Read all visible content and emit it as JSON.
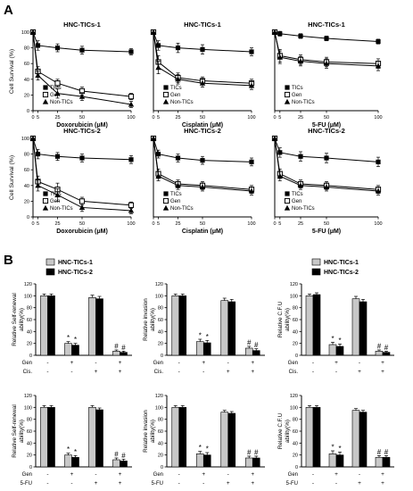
{
  "panel_labels": {
    "A": "A",
    "B": "B"
  },
  "chart_data": [
    {
      "id": "A1",
      "type": "line",
      "title": "HNC-TICs-1",
      "xlabel": "Doxorubicin (μM)",
      "ylabel": "Cell Survival (%)",
      "x": [
        0,
        5,
        25,
        50,
        100
      ],
      "xticks": [
        "0",
        "5",
        "25",
        "50",
        "100"
      ],
      "ylim": [
        0,
        100
      ],
      "yticks": [
        "0",
        "20",
        "40",
        "60",
        "80",
        "100"
      ],
      "series": [
        {
          "name": "TICs",
          "marker": "square-filled",
          "values": [
            100,
            83,
            80,
            77,
            75
          ],
          "err": [
            3,
            6,
            5,
            5,
            4
          ]
        },
        {
          "name": "Gen",
          "marker": "square-open",
          "values": [
            100,
            50,
            35,
            25,
            18
          ],
          "err": [
            3,
            6,
            5,
            5,
            4
          ]
        },
        {
          "name": "Non-TICs",
          "marker": "triangle",
          "values": [
            100,
            45,
            22,
            18,
            8
          ],
          "err": [
            3,
            6,
            6,
            5,
            4
          ]
        }
      ]
    },
    {
      "id": "A2",
      "type": "line",
      "title": "HNC-TICs-1",
      "xlabel": "Cisplatin (μM)",
      "ylabel": "",
      "x": [
        0,
        5,
        25,
        50,
        100
      ],
      "xticks": [
        "0",
        "5",
        "25",
        "50",
        "100"
      ],
      "ylim": [
        0,
        100
      ],
      "yticks": [],
      "series": [
        {
          "name": "TICs",
          "marker": "square-filled",
          "values": [
            100,
            83,
            80,
            78,
            75
          ],
          "err": [
            3,
            6,
            6,
            6,
            5
          ]
        },
        {
          "name": "Gen",
          "marker": "square-open",
          "values": [
            100,
            62,
            42,
            38,
            35
          ],
          "err": [
            3,
            8,
            6,
            5,
            5
          ]
        },
        {
          "name": "Non-TICs",
          "marker": "triangle",
          "values": [
            100,
            55,
            40,
            35,
            32
          ],
          "err": [
            3,
            8,
            6,
            5,
            5
          ]
        }
      ]
    },
    {
      "id": "A3",
      "type": "line",
      "title": "HNC-TICs-1",
      "xlabel": "5-FU (μM)",
      "ylabel": "",
      "x": [
        0,
        5,
        25,
        50,
        100
      ],
      "xticks": [
        "0",
        "5",
        "25",
        "50",
        "100"
      ],
      "ylim": [
        0,
        100
      ],
      "yticks": [],
      "series": [
        {
          "name": "TICs",
          "marker": "square-filled",
          "values": [
            100,
            98,
            95,
            92,
            88
          ],
          "err": [
            2,
            3,
            3,
            3,
            3
          ]
        },
        {
          "name": "Gen",
          "marker": "square-open",
          "values": [
            100,
            70,
            65,
            62,
            60
          ],
          "err": [
            3,
            8,
            6,
            6,
            6
          ]
        },
        {
          "name": "Non-TICs",
          "marker": "triangle",
          "values": [
            100,
            68,
            63,
            60,
            57
          ],
          "err": [
            3,
            8,
            6,
            6,
            6
          ]
        }
      ]
    },
    {
      "id": "A4",
      "type": "line",
      "title": "HNC-TICs-2",
      "xlabel": "Doxorubicin (μM)",
      "ylabel": "Cell Survival (%)",
      "x": [
        0,
        5,
        25,
        50,
        100
      ],
      "xticks": [
        "0",
        "5",
        "25",
        "50",
        "100"
      ],
      "ylim": [
        0,
        100
      ],
      "yticks": [
        "0",
        "20",
        "40",
        "60",
        "80",
        "100"
      ],
      "series": [
        {
          "name": "TICs",
          "marker": "square-filled",
          "values": [
            100,
            80,
            77,
            75,
            73
          ],
          "err": [
            3,
            6,
            5,
            5,
            5
          ]
        },
        {
          "name": "Gen",
          "marker": "square-open",
          "values": [
            100,
            45,
            35,
            20,
            15
          ],
          "err": [
            3,
            7,
            8,
            5,
            4
          ]
        },
        {
          "name": "Non-TICs",
          "marker": "triangle",
          "values": [
            100,
            40,
            28,
            12,
            8
          ],
          "err": [
            3,
            7,
            8,
            5,
            4
          ]
        }
      ]
    },
    {
      "id": "A5",
      "type": "line",
      "title": "HNC-TICs-2",
      "xlabel": "Cisplatin (μM)",
      "ylabel": "",
      "x": [
        0,
        5,
        25,
        50,
        100
      ],
      "xticks": [
        "0",
        "5",
        "25",
        "50",
        "100"
      ],
      "ylim": [
        0,
        100
      ],
      "yticks": [],
      "series": [
        {
          "name": "TICs",
          "marker": "square-filled",
          "values": [
            100,
            80,
            75,
            72,
            70
          ],
          "err": [
            3,
            5,
            5,
            5,
            5
          ]
        },
        {
          "name": "Gen",
          "marker": "square-open",
          "values": [
            100,
            55,
            42,
            40,
            35
          ],
          "err": [
            3,
            6,
            5,
            5,
            5
          ]
        },
        {
          "name": "Non-TICs",
          "marker": "triangle",
          "values": [
            100,
            52,
            40,
            38,
            33
          ],
          "err": [
            3,
            6,
            5,
            5,
            5
          ]
        }
      ]
    },
    {
      "id": "A6",
      "type": "line",
      "title": "HNC-TICs-2",
      "xlabel": "5-FU (μM)",
      "ylabel": "",
      "x": [
        0,
        5,
        25,
        50,
        100
      ],
      "xticks": [
        "0",
        "5",
        "25",
        "50",
        "100"
      ],
      "ylim": [
        0,
        100
      ],
      "yticks": [],
      "series": [
        {
          "name": "TICs",
          "marker": "square-filled",
          "values": [
            100,
            82,
            77,
            75,
            70
          ],
          "err": [
            3,
            6,
            6,
            6,
            6
          ]
        },
        {
          "name": "Gen",
          "marker": "square-open",
          "values": [
            100,
            55,
            42,
            40,
            35
          ],
          "err": [
            3,
            6,
            5,
            5,
            5
          ]
        },
        {
          "name": "Non-TICs",
          "marker": "triangle",
          "values": [
            100,
            52,
            40,
            38,
            33
          ],
          "err": [
            3,
            6,
            5,
            5,
            5
          ]
        }
      ]
    },
    {
      "id": "B1",
      "type": "bar",
      "ylabel": "Relative Self-renewal ability(%)",
      "ylim": [
        0,
        120
      ],
      "yticks": [
        "0",
        "20",
        "40",
        "60",
        "80",
        "100",
        "120"
      ],
      "legend": [
        "HNC-TICs-1",
        "HNC-TICs-2"
      ],
      "rows": [
        {
          "label": "Gen",
          "values": [
            "-",
            "+",
            "-",
            "+"
          ]
        },
        {
          "label": "Cis.",
          "values": [
            "-",
            "-",
            "+",
            "+"
          ]
        }
      ],
      "series": [
        {
          "name": "HNC-TICs-1",
          "color": "#c8c8c8",
          "values": [
            100,
            20,
            97,
            7
          ],
          "err": [
            3,
            3,
            4,
            2
          ]
        },
        {
          "name": "HNC-TICs-2",
          "color": "#000000",
          "values": [
            100,
            17,
            95,
            5
          ],
          "err": [
            3,
            3,
            4,
            2
          ]
        }
      ],
      "annotations": [
        "",
        "*",
        "",
        "#"
      ]
    },
    {
      "id": "B2",
      "type": "bar",
      "ylabel": "Relative invasion ability(%)",
      "ylim": [
        0,
        120
      ],
      "yticks": [
        "0",
        "20",
        "40",
        "60",
        "80",
        "100",
        "120"
      ],
      "legend": [],
      "rows": [
        {
          "label": "Gen",
          "values": [
            "-",
            "+",
            "-",
            "+"
          ]
        },
        {
          "label": "Cis.",
          "values": [
            "-",
            "-",
            "+",
            "+"
          ]
        }
      ],
      "series": [
        {
          "name": "HNC-TICs-1",
          "color": "#c8c8c8",
          "values": [
            100,
            23,
            92,
            12
          ],
          "err": [
            3,
            4,
            4,
            3
          ]
        },
        {
          "name": "HNC-TICs-2",
          "color": "#000000",
          "values": [
            100,
            21,
            90,
            8
          ],
          "err": [
            3,
            4,
            4,
            3
          ]
        }
      ],
      "annotations": [
        "",
        "*",
        "",
        "#"
      ]
    },
    {
      "id": "B3",
      "type": "bar",
      "ylabel": "Relative C.F.U ability(%)",
      "ylim": [
        0,
        120
      ],
      "yticks": [
        "0",
        "20",
        "40",
        "60",
        "80",
        "100",
        "120"
      ],
      "legend": [
        "HNC-TICs-1",
        "HNC-TICs-2"
      ],
      "rows": [
        {
          "label": "Gen",
          "values": [
            "-",
            "+",
            "-",
            "+"
          ]
        },
        {
          "label": "Cis.",
          "values": [
            "-",
            "-",
            "+",
            "+"
          ]
        }
      ],
      "series": [
        {
          "name": "HNC-TICs-1",
          "color": "#c8c8c8",
          "values": [
            100,
            18,
            95,
            7
          ],
          "err": [
            3,
            4,
            4,
            2
          ]
        },
        {
          "name": "HNC-TICs-2",
          "color": "#000000",
          "values": [
            102,
            15,
            90,
            5
          ],
          "err": [
            3,
            4,
            4,
            2
          ]
        }
      ],
      "annotations": [
        "",
        "*",
        "",
        "#"
      ]
    },
    {
      "id": "B4",
      "type": "bar",
      "ylabel": "Relative Self-renewal ability(%)",
      "ylim": [
        0,
        120
      ],
      "yticks": [
        "0",
        "20",
        "40",
        "60",
        "80",
        "100",
        "120"
      ],
      "legend": [],
      "rows": [
        {
          "label": "Gen",
          "values": [
            "-",
            "+",
            "-",
            "+"
          ]
        },
        {
          "label": "5-FU",
          "values": [
            "-",
            "-",
            "+",
            "+"
          ]
        }
      ],
      "series": [
        {
          "name": "HNC-TICs-1",
          "color": "#c8c8c8",
          "values": [
            100,
            20,
            100,
            12
          ],
          "err": [
            3,
            3,
            3,
            3
          ]
        },
        {
          "name": "HNC-TICs-2",
          "color": "#000000",
          "values": [
            100,
            16,
            96,
            10
          ],
          "err": [
            3,
            3,
            3,
            3
          ]
        }
      ],
      "annotations": [
        "",
        "*",
        "",
        "#"
      ]
    },
    {
      "id": "B5",
      "type": "bar",
      "ylabel": "Relative invasion ability(%)",
      "ylim": [
        0,
        120
      ],
      "yticks": [
        "0",
        "20",
        "40",
        "60",
        "80",
        "100",
        "120"
      ],
      "legend": [],
      "rows": [
        {
          "label": "Gen",
          "values": [
            "-",
            "+",
            "-",
            "+"
          ]
        },
        {
          "label": "5-FU",
          "values": [
            "-",
            "-",
            "+",
            "+"
          ]
        }
      ],
      "series": [
        {
          "name": "HNC-TICs-1",
          "color": "#c8c8c8",
          "values": [
            100,
            22,
            92,
            15
          ],
          "err": [
            3,
            4,
            3,
            3
          ]
        },
        {
          "name": "HNC-TICs-2",
          "color": "#000000",
          "values": [
            100,
            20,
            90,
            15
          ],
          "err": [
            3,
            4,
            3,
            3
          ]
        }
      ],
      "annotations": [
        "",
        "*",
        "",
        "#"
      ]
    },
    {
      "id": "B6",
      "type": "bar",
      "ylabel": "Relative C.F.U ability(%)",
      "ylim": [
        0,
        120
      ],
      "yticks": [
        "0",
        "20",
        "40",
        "60",
        "80",
        "100",
        "120"
      ],
      "legend": [],
      "rows": [
        {
          "label": "Gen",
          "values": [
            "-",
            "+",
            "-",
            "+"
          ]
        },
        {
          "label": "5-FU",
          "values": [
            "-",
            "-",
            "+",
            "+"
          ]
        }
      ],
      "series": [
        {
          "name": "HNC-TICs-1",
          "color": "#c8c8c8",
          "values": [
            100,
            22,
            95,
            16
          ],
          "err": [
            3,
            5,
            3,
            3
          ]
        },
        {
          "name": "HNC-TICs-2",
          "color": "#000000",
          "values": [
            100,
            20,
            92,
            16
          ],
          "err": [
            3,
            5,
            3,
            3
          ]
        }
      ],
      "annotations": [
        "",
        "*",
        "",
        "#"
      ]
    }
  ]
}
